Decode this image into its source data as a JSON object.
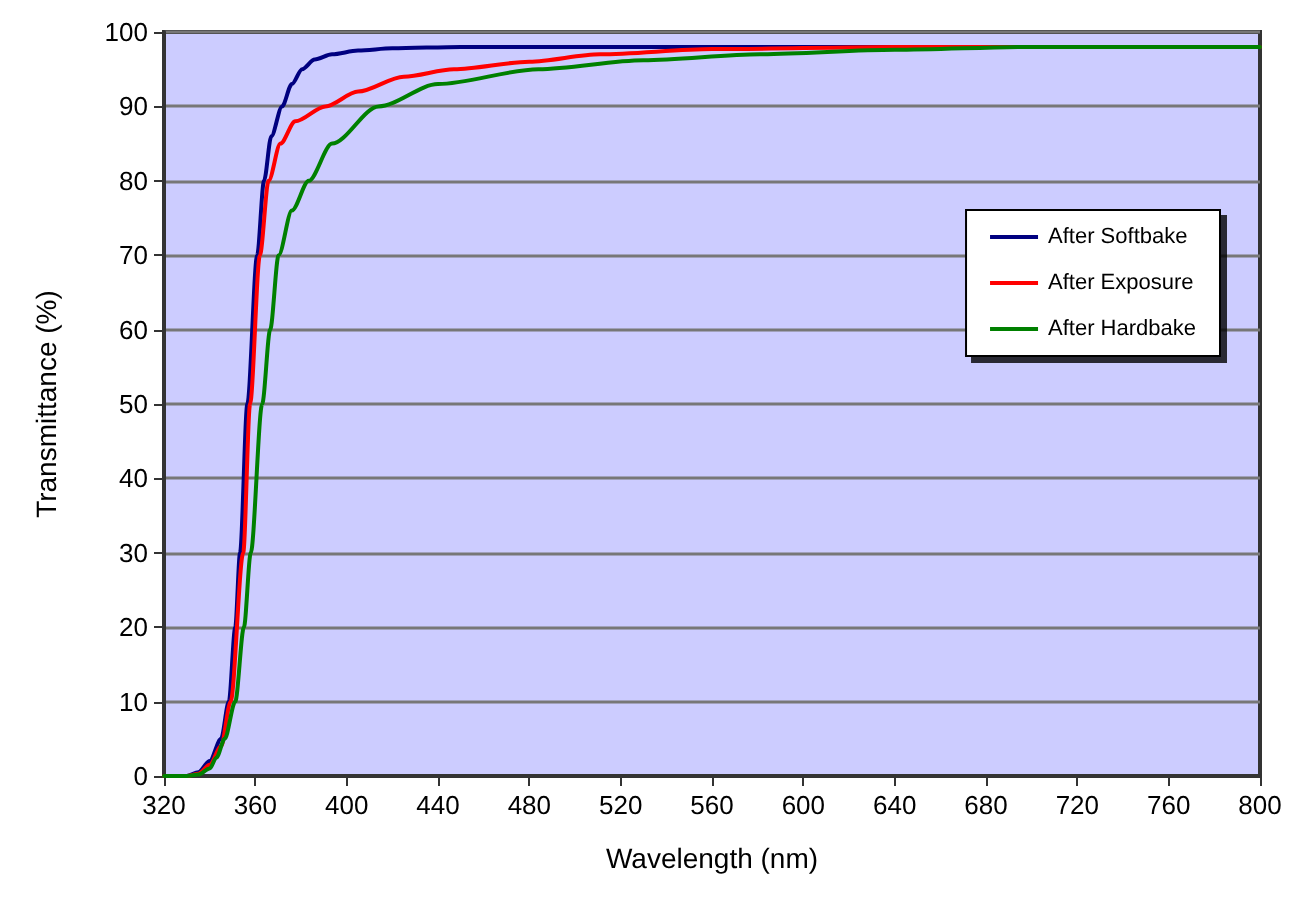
{
  "chart_data": {
    "type": "line",
    "xlabel": "Wavelength (nm)",
    "ylabel": "Transmittance (%)",
    "xlim": [
      320,
      800
    ],
    "ylim": [
      0,
      100
    ],
    "xticks": [
      320,
      360,
      400,
      440,
      480,
      520,
      560,
      600,
      640,
      680,
      720,
      760,
      800
    ],
    "yticks": [
      0,
      10,
      20,
      30,
      40,
      50,
      60,
      70,
      80,
      90,
      100
    ],
    "grid": "y",
    "legend": "right",
    "marker": "none",
    "line_style": "solid",
    "series": [
      {
        "name": "After Softbake",
        "color": "#000080",
        "x": [
          320,
          330,
          335,
          340,
          345,
          348.4,
          351.2,
          353.3,
          356.5,
          360.8,
          363.8,
          367,
          371.7,
          376,
          380.5,
          386,
          393.6,
          405,
          420,
          450,
          500,
          600,
          700,
          800
        ],
        "values": [
          0,
          0,
          0.5,
          2,
          5,
          10,
          20,
          30,
          50,
          70,
          80,
          86,
          90,
          93,
          95,
          96.3,
          97,
          97.5,
          97.8,
          98,
          98,
          98,
          98,
          98
        ]
      },
      {
        "name": "After Exposure",
        "color": "#ff0000",
        "x": [
          320,
          330,
          335,
          340,
          345,
          349.2,
          354.7,
          357.7,
          362,
          365.8,
          371,
          377.5,
          390.7,
          405,
          425,
          447,
          480,
          511,
          560,
          640,
          720,
          800
        ],
        "values": [
          0,
          0,
          0.3,
          1.5,
          4,
          10,
          30,
          50,
          70,
          80,
          85,
          88,
          90,
          92,
          94,
          95,
          96,
          97,
          97.7,
          98,
          98,
          98
        ]
      },
      {
        "name": "After Hardbake",
        "color": "#008000",
        "x": [
          320,
          330,
          335,
          340,
          343,
          346.6,
          351.2,
          355,
          358,
          363,
          366.5,
          370.2,
          376,
          383.4,
          393.6,
          414,
          440,
          484,
          530,
          581,
          640,
          700,
          800
        ],
        "values": [
          0,
          0,
          0.2,
          1,
          2.5,
          5,
          10,
          20,
          30,
          50,
          60,
          70,
          76,
          80,
          85,
          90,
          93,
          95,
          96.2,
          97,
          97.6,
          98,
          98
        ]
      }
    ]
  }
}
